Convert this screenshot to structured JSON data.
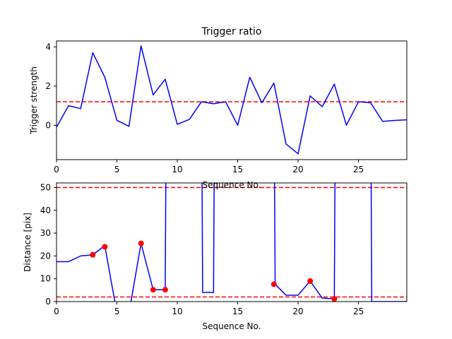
{
  "chart_data": [
    {
      "type": "line",
      "title": "Trigger ratio",
      "xlabel": "Sequence No.",
      "ylabel": "Trigger strength",
      "xlim": [
        0,
        29
      ],
      "ylim": [
        -1.75,
        4.3
      ],
      "xticks": [
        0,
        5,
        10,
        15,
        20,
        25
      ],
      "yticks": [
        0,
        2,
        4
      ],
      "grid": false,
      "series": [
        {
          "color": "#0000ff",
          "x": [
            0,
            1,
            2,
            3,
            4,
            5,
            6,
            7,
            8,
            9,
            10,
            11,
            12,
            13,
            14,
            15,
            16,
            17,
            18,
            19,
            20,
            21,
            22,
            23,
            24,
            25,
            26,
            27,
            28,
            29
          ],
          "values": [
            -0.1,
            1.0,
            0.85,
            3.7,
            2.45,
            0.25,
            -0.05,
            4.05,
            1.55,
            2.35,
            0.05,
            0.3,
            1.2,
            1.1,
            1.2,
            0.0,
            2.45,
            1.15,
            2.15,
            -0.95,
            -1.45,
            1.5,
            0.95,
            2.1,
            0.0,
            1.2,
            1.15,
            0.2,
            0.25,
            0.28
          ]
        }
      ],
      "hlines": [
        {
          "y": 1.2,
          "color": "#ff0000",
          "style": "dashed"
        }
      ]
    },
    {
      "type": "line",
      "title": "",
      "xlabel": "Sequence No.",
      "ylabel": "Distance [pix]",
      "xlim": [
        0,
        29
      ],
      "ylim": [
        0,
        52
      ],
      "xticks": [
        0,
        5,
        10,
        15,
        20,
        25
      ],
      "yticks": [
        0,
        10,
        20,
        30,
        40,
        50
      ],
      "grid": false,
      "series": [
        {
          "color": "#0000ff",
          "x": [
            0,
            1,
            2,
            3,
            4,
            5,
            6,
            7,
            8,
            9,
            9.1,
            12,
            12.1,
            13,
            13.1,
            18,
            18.1,
            19,
            20,
            21,
            22,
            23,
            23.1,
            26,
            26.1,
            27,
            28,
            29
          ],
          "values": [
            17.5,
            17.5,
            20,
            20.5,
            24.5,
            -5,
            -5,
            25.5,
            5.2,
            5.2,
            100,
            100,
            4,
            4,
            100,
            100,
            7.6,
            2.8,
            2.8,
            9,
            1.5,
            1.2,
            100,
            100,
            0,
            0,
            0,
            0
          ]
        },
        {
          "color": "#ff0000",
          "markers_only": true,
          "x": [
            3,
            4,
            7,
            8,
            9,
            18,
            21,
            23
          ],
          "values": [
            20.5,
            24,
            25.5,
            5.2,
            5.2,
            7.6,
            9,
            1.2
          ]
        }
      ],
      "hlines": [
        {
          "y": 50,
          "color": "#ff0000",
          "style": "dashed"
        },
        {
          "y": 2,
          "color": "#ff0000",
          "style": "dashed"
        }
      ]
    }
  ]
}
